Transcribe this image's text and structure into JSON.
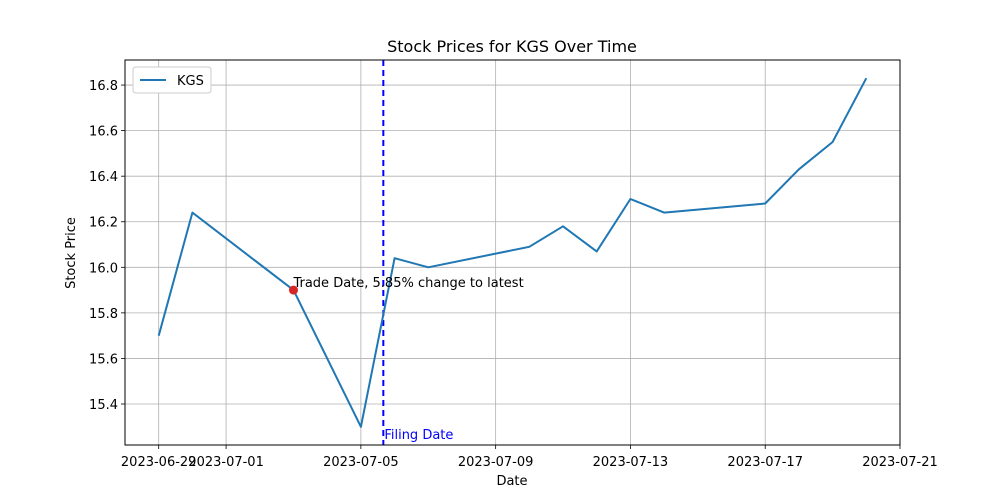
{
  "chart_data": {
    "type": "line",
    "title": "Stock Prices for KGS Over Time",
    "xlabel": "Date",
    "ylabel": "Stock Price",
    "xlim": [
      "2023-06-28",
      "2023-07-21"
    ],
    "ylim": [
      15.22,
      16.91
    ],
    "grid": true,
    "legend_position": "top-left",
    "x_ticks": [
      "2023-06-29",
      "2023-07-01",
      "2023-07-05",
      "2023-07-09",
      "2023-07-13",
      "2023-07-17",
      "2023-07-21"
    ],
    "y_ticks": [
      15.4,
      15.6,
      15.8,
      16.0,
      16.2,
      16.4,
      16.6,
      16.8
    ],
    "series": [
      {
        "name": "KGS",
        "color": "#1f77b4",
        "x": [
          "2023-06-29",
          "2023-06-30",
          "2023-07-03",
          "2023-07-05",
          "2023-07-06",
          "2023-07-07",
          "2023-07-10",
          "2023-07-11",
          "2023-07-12",
          "2023-07-13",
          "2023-07-14",
          "2023-07-17",
          "2023-07-18",
          "2023-07-19",
          "2023-07-20"
        ],
        "y": [
          15.7,
          16.24,
          15.9,
          15.3,
          16.04,
          16.0,
          16.09,
          16.18,
          16.07,
          16.3,
          16.24,
          16.28,
          16.43,
          16.55,
          16.83
        ]
      }
    ],
    "annotations": {
      "trade_point": {
        "x": "2023-07-03",
        "y": 15.9,
        "color": "#d62728",
        "label": "Trade Date, 5.85% change to latest"
      },
      "filing_line": {
        "x": "2023-07-05T16:00",
        "color": "#0000ff",
        "label": "Filing Date"
      }
    }
  }
}
